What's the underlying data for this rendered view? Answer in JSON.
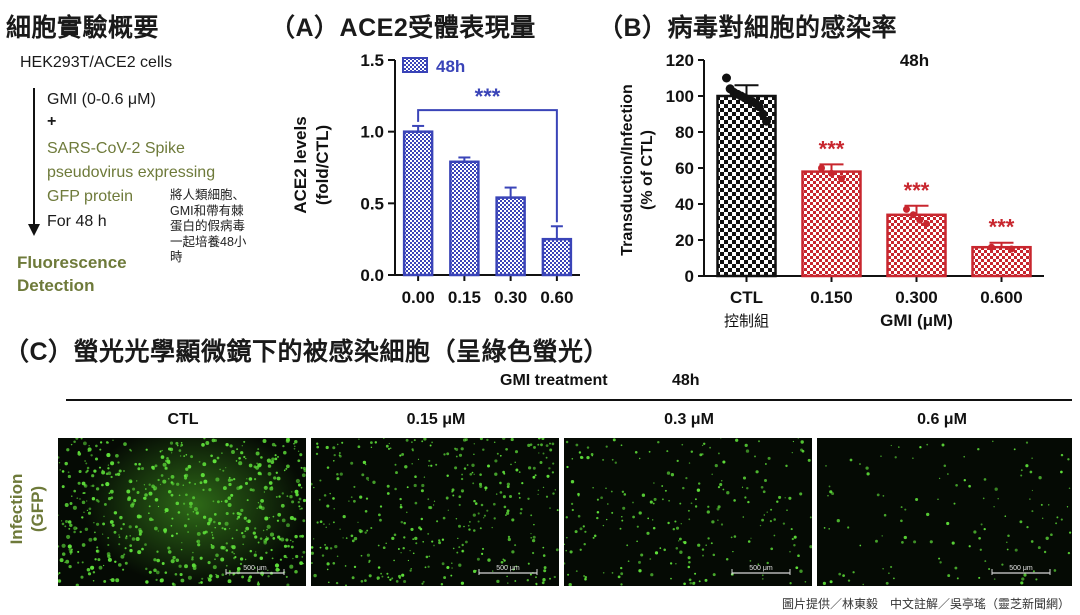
{
  "summary": {
    "title": "細胞實驗概要",
    "cell_line": "HEK293T/ACE2  cells",
    "treatment": "GMI (0-0.6 μM)",
    "plus": "+",
    "pseudo_lines": [
      "SARS-CoV-2  Spike",
      "pseudovirus  expressing",
      "GFP protein"
    ],
    "duration": "For 48 h",
    "note": "將人類細胞、\nGMI和帶有棘\n蛋白的假病毒\n一起培養48小\n時",
    "detection_lines": [
      "Fluorescence",
      "Detection"
    ]
  },
  "chart_data": [
    {
      "panel": "A",
      "type": "bar",
      "title": "（A）ACE2受體表現量",
      "categories": [
        "0.00",
        "0.15",
        "0.30",
        "0.60"
      ],
      "series": [
        {
          "name": "48h",
          "values": [
            1.0,
            0.79,
            0.54,
            0.25
          ],
          "errors": [
            0.04,
            0.03,
            0.07,
            0.09
          ]
        }
      ],
      "ylabel_lines": [
        "ACE2 levels",
        "(fold/CTL)"
      ],
      "xlabel": "",
      "ylim": [
        0,
        1.5
      ],
      "yticks": [
        "0.0",
        "0.5",
        "1.0",
        "1.5"
      ],
      "ytick_values": [
        0,
        0.5,
        1.0,
        1.5
      ],
      "significance": "***",
      "legend": "top-left",
      "color": "#3a44b8"
    },
    {
      "panel": "B",
      "type": "bar",
      "title": "（B）病毒對細胞的感染率",
      "subtitle": "48h",
      "categories": [
        "CTL",
        "0.150",
        "0.300",
        "0.600"
      ],
      "category_sublabel": "控制組",
      "xlabel": "GMI (μM)",
      "ylabel_lines": [
        "Transduction/Infection",
        "(% of CTL)"
      ],
      "values": [
        100,
        58,
        34,
        16
      ],
      "errors": [
        6,
        4,
        5,
        2.5
      ],
      "points": [
        [
          110,
          104,
          102,
          101,
          100,
          99,
          98,
          97,
          96,
          94,
          90,
          86
        ],
        [
          60,
          57,
          54
        ],
        [
          37,
          34,
          31,
          29
        ],
        [
          16,
          15
        ]
      ],
      "ylim": [
        0,
        120
      ],
      "yticks": [
        "0",
        "20",
        "40",
        "60",
        "80",
        "100",
        "120"
      ],
      "ytick_values": [
        0,
        20,
        40,
        60,
        80,
        100,
        120
      ],
      "significance": [
        "",
        "***",
        "***",
        "***"
      ],
      "colors": {
        "ctl": "#111111",
        "treated": "#c8262e",
        "sig": "#c8262e"
      }
    }
  ],
  "fluorescence": {
    "title": "（C）螢光光學顯微鏡下的被感染細胞（呈綠色螢光）",
    "header_label": "GMI treatment",
    "header_time": "48h",
    "row_label_lines": [
      "Infection",
      "(GFP)"
    ],
    "columns": [
      "CTL",
      "0.15 μM",
      "0.3 μM",
      "0.6 μM"
    ],
    "density": [
      1.0,
      0.62,
      0.38,
      0.2
    ],
    "scale_bar": "500 μm",
    "cell_color": "#5fe03a"
  },
  "credit": "圖片提供／林東毅　中文註解／吳亭瑤（靈芝新聞網）"
}
